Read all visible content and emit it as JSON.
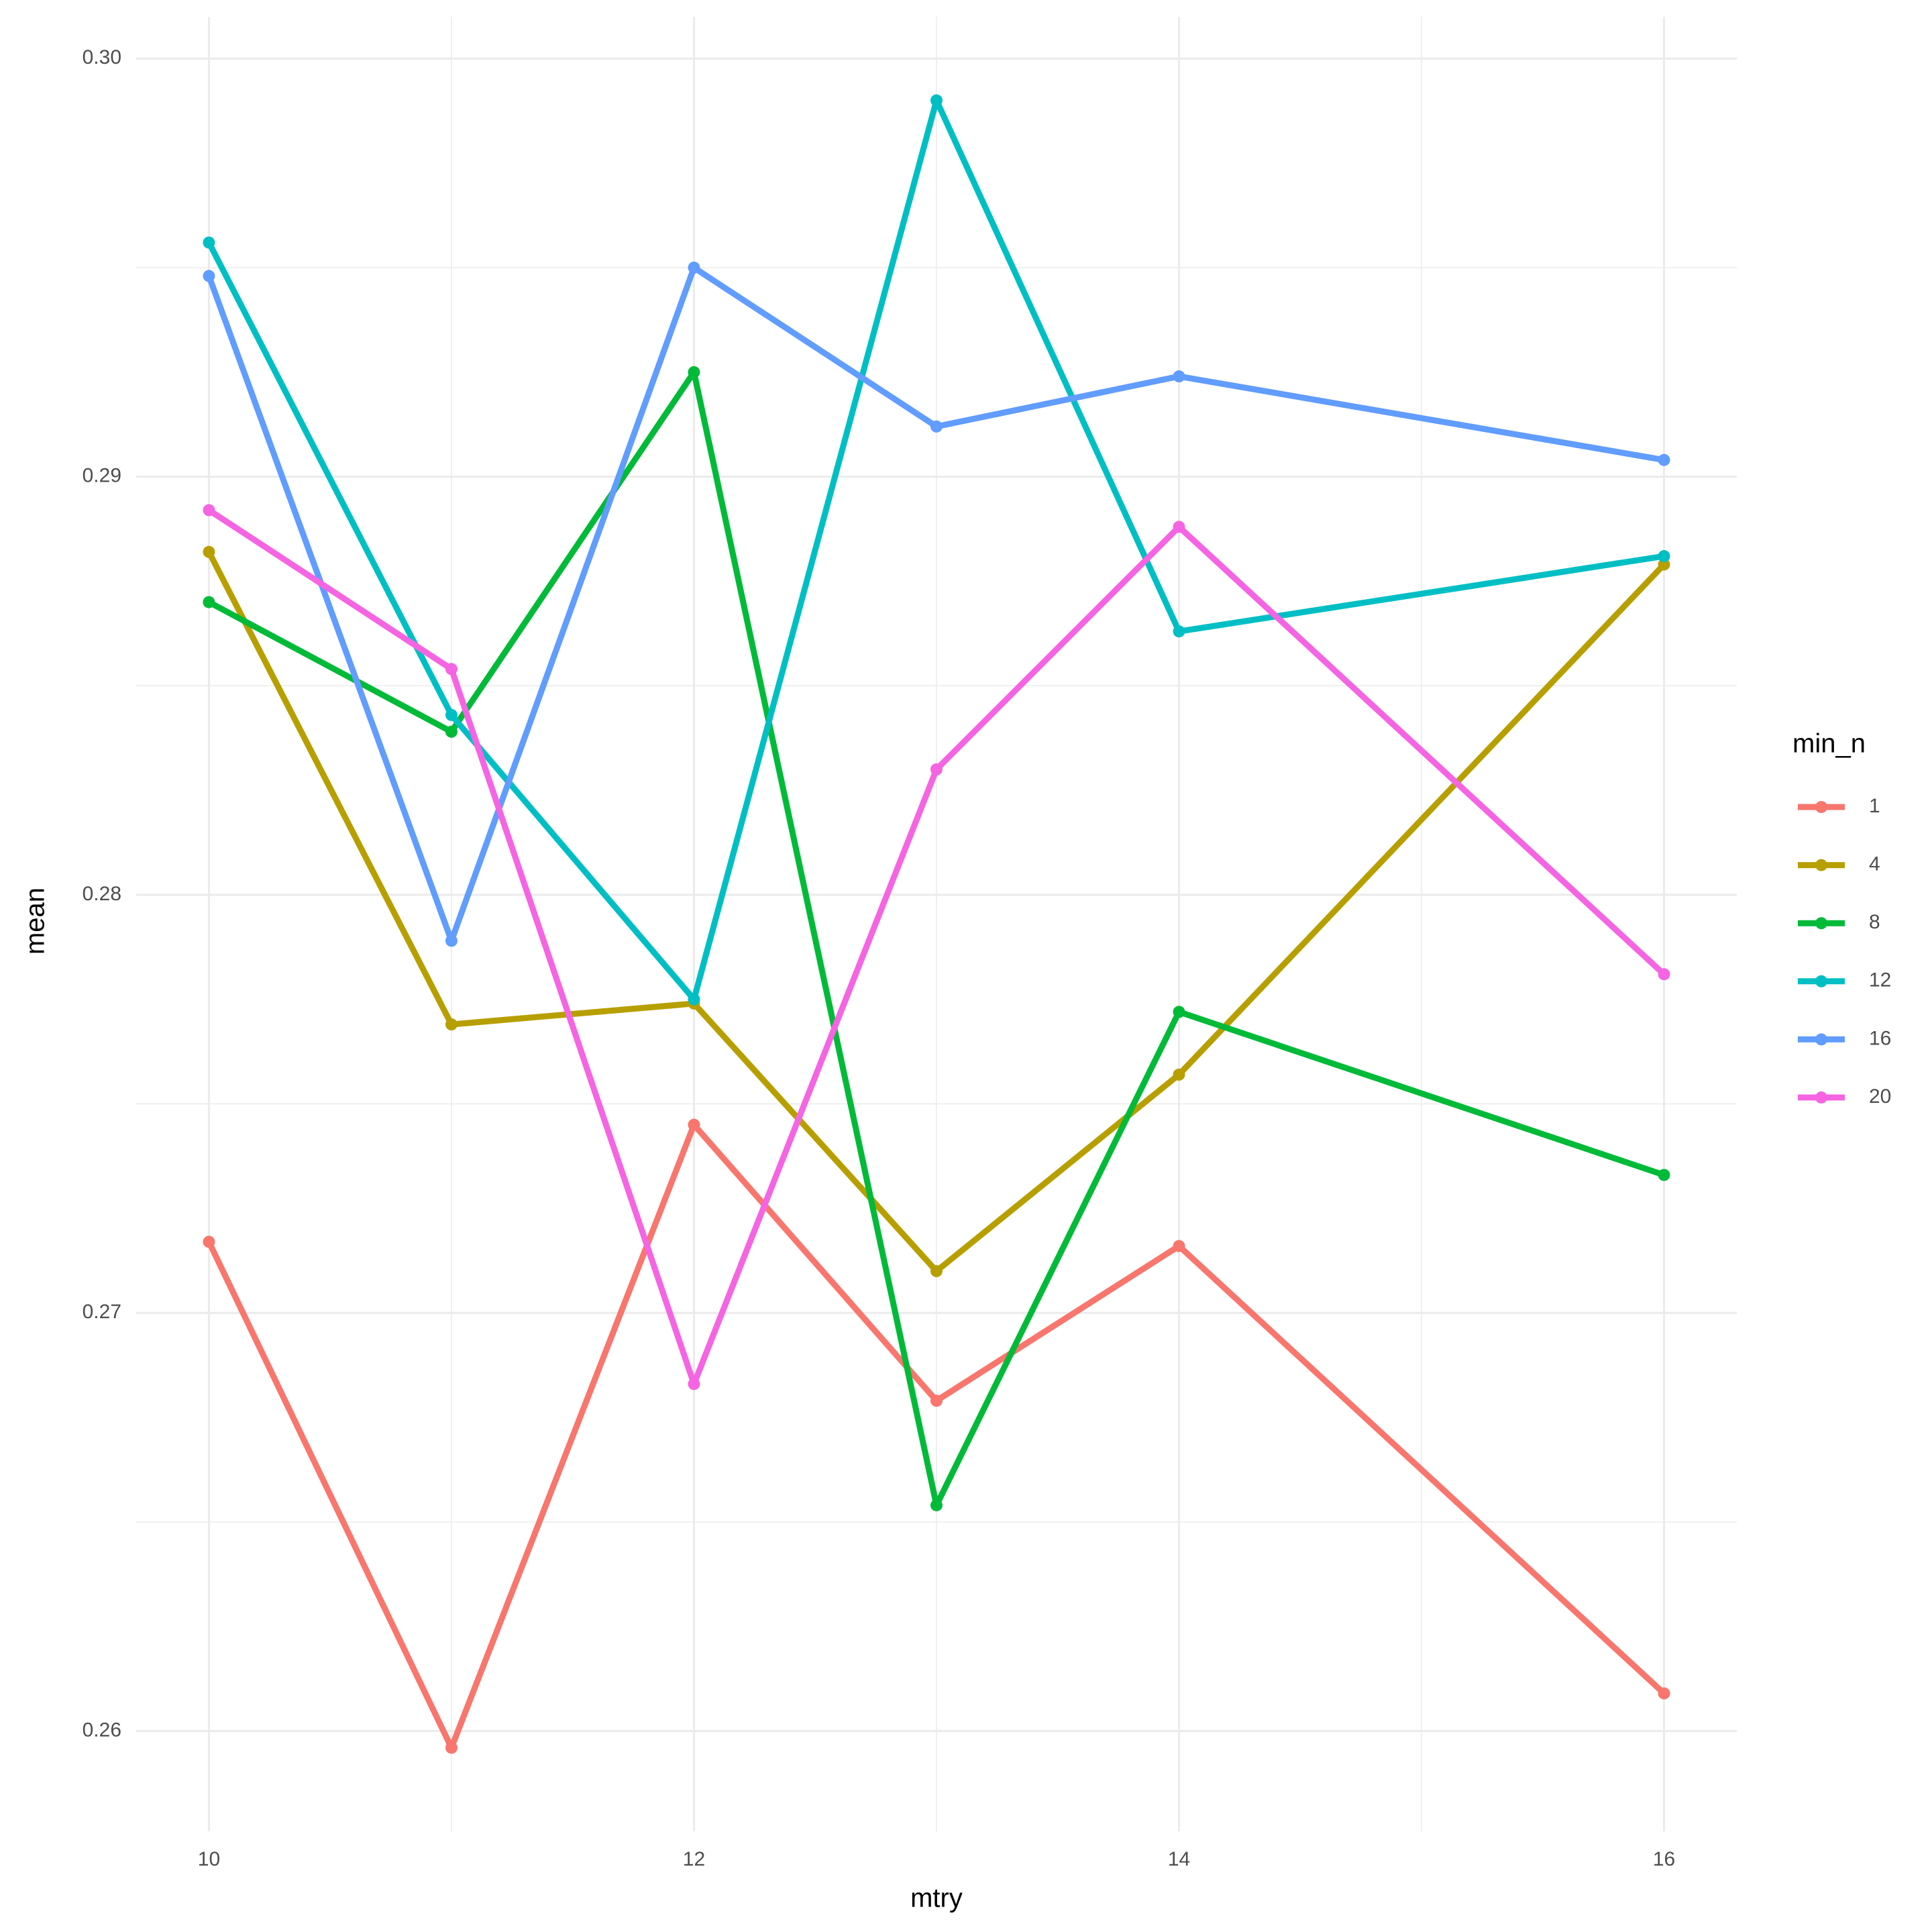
{
  "chart_data": {
    "type": "line",
    "x_label": "mtry",
    "y_label": "mean",
    "legend_title": "min_n",
    "x": [
      10,
      11,
      12,
      13,
      14,
      16
    ],
    "series": [
      {
        "name": "1",
        "color": "#F8766D",
        "values": [
          0.2717,
          0.2596,
          0.2745,
          0.2679,
          0.2716,
          0.2609
        ]
      },
      {
        "name": "4",
        "color": "#B79F00",
        "values": [
          0.2882,
          0.2769,
          0.2774,
          0.271,
          0.2757,
          0.2879
        ]
      },
      {
        "name": "8",
        "color": "#00BA38",
        "values": [
          0.287,
          0.2839,
          0.2925,
          0.2654,
          0.2772,
          0.2733
        ]
      },
      {
        "name": "12",
        "color": "#00BFC4",
        "values": [
          0.2956,
          0.2843,
          0.2775,
          0.299,
          0.2863,
          0.2881
        ]
      },
      {
        "name": "16",
        "color": "#619CFF",
        "values": [
          0.2948,
          0.2789,
          0.295,
          0.2912,
          0.2924,
          0.2904
        ]
      },
      {
        "name": "20",
        "color": "#F564E3",
        "values": [
          0.2892,
          0.2854,
          0.2683,
          0.283,
          0.2888,
          0.2781
        ]
      }
    ],
    "xlim": [
      9.7,
      16.3
    ],
    "xticks": [
      10,
      12,
      14,
      16
    ],
    "ylim": [
      0.2576,
      0.301
    ],
    "yticks": [
      0.26,
      0.27,
      0.28,
      0.29,
      {
        "value": 0.3,
        "label": "0.30"
      }
    ],
    "grid": true,
    "legend": "right"
  }
}
